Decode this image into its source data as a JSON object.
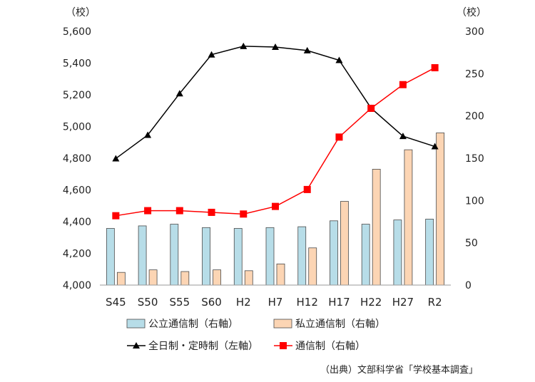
{
  "chart_data": {
    "type": "bar",
    "categories": [
      "S45",
      "S50",
      "S55",
      "S60",
      "H2",
      "H7",
      "H12",
      "H17",
      "H22",
      "H27",
      "R2"
    ],
    "left_axis": {
      "unit_label": "（校）",
      "ylim": [
        4000,
        5600
      ],
      "ticks": [
        "4,000",
        "4,200",
        "4,400",
        "4,600",
        "4,800",
        "5,000",
        "5,200",
        "5,400",
        "5,600"
      ],
      "tick_values": [
        4000,
        4200,
        4400,
        4600,
        4800,
        5000,
        5200,
        5400,
        5600
      ]
    },
    "right_axis": {
      "unit_label": "（校）",
      "ylim": [
        0,
        300
      ],
      "ticks": [
        "0",
        "50",
        "100",
        "150",
        "200",
        "250",
        "300"
      ],
      "tick_values": [
        0,
        50,
        100,
        150,
        200,
        250,
        300
      ]
    },
    "series": [
      {
        "name": "公立通信制（右軸）",
        "kind": "bar",
        "axis": "right",
        "color": "#b7dde8",
        "values": [
          67,
          70,
          72,
          68,
          67,
          68,
          69,
          76,
          72,
          77,
          78
        ]
      },
      {
        "name": "私立通信制（右軸）",
        "kind": "bar",
        "axis": "right",
        "color": "#fcd5b4",
        "values": [
          15,
          18,
          16,
          18,
          17,
          25,
          44,
          99,
          137,
          160,
          180
        ]
      },
      {
        "name": "全日制・定時制（左軸）",
        "kind": "line",
        "axis": "left",
        "color": "#000000",
        "marker": "triangle",
        "values": [
          4798,
          4946,
          5208,
          5453,
          5506,
          5501,
          5479,
          5418,
          5116,
          4939,
          4874
        ]
      },
      {
        "name": "通信制（右軸）",
        "kind": "line",
        "axis": "right",
        "color": "#ff0000",
        "marker": "square",
        "values": [
          82,
          88,
          88,
          86,
          84,
          93,
          113,
          175,
          209,
          237,
          257
        ]
      }
    ],
    "source": "（出典）文部科学省「学校基本調査」"
  }
}
